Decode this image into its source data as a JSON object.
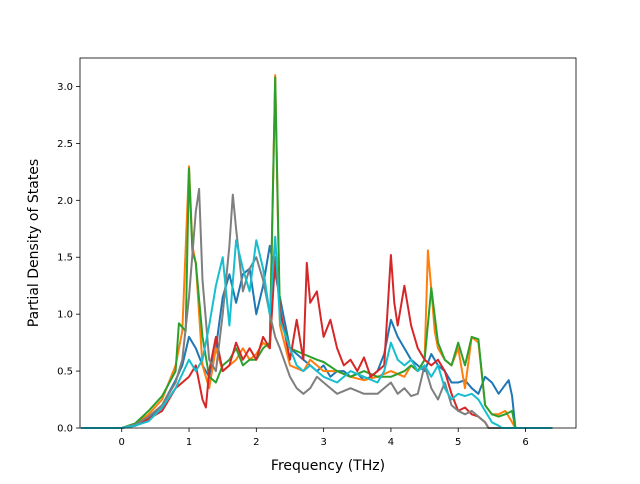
{
  "chart_data": {
    "type": "line",
    "title": "",
    "xlabel": "Frequency (THz)",
    "ylabel": "Partial Density of States",
    "xlim": [
      -0.62,
      6.75
    ],
    "ylim": [
      0.0,
      3.25
    ],
    "xticks": [
      "0",
      "1",
      "2",
      "3",
      "4",
      "5",
      "6"
    ],
    "yticks": [
      "0.0",
      "0.5",
      "1.0",
      "1.5",
      "2.0",
      "2.5",
      "3.0"
    ],
    "grid": false,
    "legend": "none",
    "series": [
      {
        "color": "#1f77b4",
        "points": [
          [
            -0.6,
            0
          ],
          [
            0,
            0
          ],
          [
            0.2,
            0.02
          ],
          [
            0.4,
            0.08
          ],
          [
            0.6,
            0.2
          ],
          [
            0.8,
            0.42
          ],
          [
            0.9,
            0.55
          ],
          [
            1.0,
            0.8
          ],
          [
            1.1,
            0.7
          ],
          [
            1.2,
            0.55
          ],
          [
            1.3,
            0.45
          ],
          [
            1.4,
            0.7
          ],
          [
            1.5,
            1.15
          ],
          [
            1.6,
            1.35
          ],
          [
            1.7,
            1.1
          ],
          [
            1.8,
            1.35
          ],
          [
            1.9,
            1.4
          ],
          [
            2.0,
            1.0
          ],
          [
            2.1,
            1.25
          ],
          [
            2.2,
            1.6
          ],
          [
            2.3,
            1.3
          ],
          [
            2.4,
            1.0
          ],
          [
            2.5,
            0.7
          ],
          [
            2.6,
            0.65
          ],
          [
            2.7,
            0.6
          ],
          [
            2.8,
            0.55
          ],
          [
            2.9,
            0.5
          ],
          [
            3.0,
            0.55
          ],
          [
            3.1,
            0.45
          ],
          [
            3.2,
            0.5
          ],
          [
            3.3,
            0.5
          ],
          [
            3.4,
            0.45
          ],
          [
            3.5,
            0.48
          ],
          [
            3.6,
            0.42
          ],
          [
            3.7,
            0.45
          ],
          [
            3.8,
            0.5
          ],
          [
            3.9,
            0.65
          ],
          [
            4.0,
            0.95
          ],
          [
            4.1,
            0.8
          ],
          [
            4.2,
            0.7
          ],
          [
            4.3,
            0.6
          ],
          [
            4.4,
            0.55
          ],
          [
            4.5,
            0.5
          ],
          [
            4.6,
            0.65
          ],
          [
            4.7,
            0.55
          ],
          [
            4.8,
            0.5
          ],
          [
            4.9,
            0.4
          ],
          [
            5.0,
            0.4
          ],
          [
            5.1,
            0.42
          ],
          [
            5.2,
            0.35
          ],
          [
            5.3,
            0.3
          ],
          [
            5.4,
            0.45
          ],
          [
            5.5,
            0.4
          ],
          [
            5.6,
            0.3
          ],
          [
            5.7,
            0.38
          ],
          [
            5.75,
            0.42
          ],
          [
            5.8,
            0.28
          ],
          [
            5.85,
            0
          ],
          [
            6.4,
            0
          ]
        ]
      },
      {
        "color": "#ff7f0e",
        "points": [
          [
            -0.6,
            0
          ],
          [
            0,
            0
          ],
          [
            0.2,
            0.03
          ],
          [
            0.4,
            0.12
          ],
          [
            0.6,
            0.25
          ],
          [
            0.8,
            0.55
          ],
          [
            0.9,
            0.85
          ],
          [
            1.0,
            2.3
          ],
          [
            1.05,
            1.6
          ],
          [
            1.1,
            1.45
          ],
          [
            1.2,
            0.55
          ],
          [
            1.3,
            0.35
          ],
          [
            1.4,
            0.7
          ],
          [
            1.5,
            0.5
          ],
          [
            1.6,
            0.55
          ],
          [
            1.7,
            0.6
          ],
          [
            1.8,
            0.7
          ],
          [
            1.9,
            0.6
          ],
          [
            2.0,
            0.65
          ],
          [
            2.1,
            0.75
          ],
          [
            2.2,
            0.7
          ],
          [
            2.28,
            3.1
          ],
          [
            2.35,
            0.9
          ],
          [
            2.5,
            0.55
          ],
          [
            2.7,
            0.5
          ],
          [
            2.8,
            0.6
          ],
          [
            2.9,
            0.55
          ],
          [
            3.0,
            0.5
          ],
          [
            3.2,
            0.5
          ],
          [
            3.4,
            0.45
          ],
          [
            3.6,
            0.42
          ],
          [
            3.8,
            0.45
          ],
          [
            4.0,
            0.5
          ],
          [
            4.2,
            0.45
          ],
          [
            4.3,
            0.55
          ],
          [
            4.4,
            0.5
          ],
          [
            4.5,
            0.6
          ],
          [
            4.55,
            1.56
          ],
          [
            4.6,
            1.22
          ],
          [
            4.65,
            0.85
          ],
          [
            4.7,
            0.7
          ],
          [
            4.8,
            0.6
          ],
          [
            4.9,
            0.55
          ],
          [
            5.0,
            0.7
          ],
          [
            5.1,
            0.35
          ],
          [
            5.2,
            0.8
          ],
          [
            5.3,
            0.75
          ],
          [
            5.4,
            0.2
          ],
          [
            5.5,
            0.12
          ],
          [
            5.6,
            0.12
          ],
          [
            5.7,
            0.15
          ],
          [
            5.8,
            0.05
          ],
          [
            5.85,
            0
          ],
          [
            6.4,
            0
          ]
        ]
      },
      {
        "color": "#2ca02c",
        "points": [
          [
            -0.6,
            0
          ],
          [
            0,
            0
          ],
          [
            0.2,
            0.04
          ],
          [
            0.4,
            0.15
          ],
          [
            0.6,
            0.28
          ],
          [
            0.8,
            0.5
          ],
          [
            0.85,
            0.92
          ],
          [
            0.95,
            0.85
          ],
          [
            1.0,
            2.28
          ],
          [
            1.05,
            1.55
          ],
          [
            1.1,
            1.45
          ],
          [
            1.2,
            0.8
          ],
          [
            1.3,
            0.45
          ],
          [
            1.4,
            0.4
          ],
          [
            1.5,
            0.55
          ],
          [
            1.6,
            0.6
          ],
          [
            1.7,
            0.7
          ],
          [
            1.8,
            0.55
          ],
          [
            1.9,
            0.6
          ],
          [
            2.0,
            0.6
          ],
          [
            2.1,
            0.7
          ],
          [
            2.2,
            0.75
          ],
          [
            2.28,
            3.08
          ],
          [
            2.35,
            1.0
          ],
          [
            2.5,
            0.7
          ],
          [
            2.7,
            0.65
          ],
          [
            2.9,
            0.6
          ],
          [
            3.0,
            0.58
          ],
          [
            3.2,
            0.5
          ],
          [
            3.4,
            0.45
          ],
          [
            3.6,
            0.5
          ],
          [
            3.8,
            0.45
          ],
          [
            4.0,
            0.45
          ],
          [
            4.2,
            0.5
          ],
          [
            4.3,
            0.55
          ],
          [
            4.4,
            0.5
          ],
          [
            4.5,
            0.6
          ],
          [
            4.6,
            1.23
          ],
          [
            4.7,
            0.75
          ],
          [
            4.8,
            0.6
          ],
          [
            4.9,
            0.55
          ],
          [
            5.0,
            0.75
          ],
          [
            5.1,
            0.55
          ],
          [
            5.2,
            0.8
          ],
          [
            5.3,
            0.78
          ],
          [
            5.4,
            0.2
          ],
          [
            5.5,
            0.12
          ],
          [
            5.6,
            0.1
          ],
          [
            5.7,
            0.12
          ],
          [
            5.8,
            0.15
          ],
          [
            5.85,
            0
          ],
          [
            6.4,
            0
          ]
        ]
      },
      {
        "color": "#d62728",
        "points": [
          [
            -0.6,
            0
          ],
          [
            0,
            0
          ],
          [
            0.2,
            0.02
          ],
          [
            0.4,
            0.08
          ],
          [
            0.6,
            0.15
          ],
          [
            0.8,
            0.35
          ],
          [
            1.0,
            0.45
          ],
          [
            1.1,
            0.55
          ],
          [
            1.2,
            0.25
          ],
          [
            1.25,
            0.18
          ],
          [
            1.3,
            0.5
          ],
          [
            1.4,
            0.8
          ],
          [
            1.5,
            0.5
          ],
          [
            1.6,
            0.55
          ],
          [
            1.7,
            0.75
          ],
          [
            1.8,
            0.6
          ],
          [
            1.9,
            0.7
          ],
          [
            2.0,
            0.6
          ],
          [
            2.1,
            0.8
          ],
          [
            2.2,
            0.7
          ],
          [
            2.28,
            1.5
          ],
          [
            2.35,
            1.05
          ],
          [
            2.5,
            0.6
          ],
          [
            2.6,
            0.95
          ],
          [
            2.7,
            0.6
          ],
          [
            2.75,
            1.45
          ],
          [
            2.8,
            1.1
          ],
          [
            2.9,
            1.2
          ],
          [
            3.0,
            0.8
          ],
          [
            3.1,
            0.95
          ],
          [
            3.2,
            0.7
          ],
          [
            3.3,
            0.55
          ],
          [
            3.4,
            0.6
          ],
          [
            3.5,
            0.5
          ],
          [
            3.6,
            0.62
          ],
          [
            3.7,
            0.45
          ],
          [
            3.8,
            0.5
          ],
          [
            3.9,
            0.55
          ],
          [
            4.0,
            1.52
          ],
          [
            4.05,
            1.1
          ],
          [
            4.1,
            0.9
          ],
          [
            4.2,
            1.25
          ],
          [
            4.3,
            0.9
          ],
          [
            4.4,
            0.7
          ],
          [
            4.5,
            0.6
          ],
          [
            4.6,
            0.55
          ],
          [
            4.7,
            0.6
          ],
          [
            4.8,
            0.5
          ],
          [
            4.9,
            0.3
          ],
          [
            5.0,
            0.15
          ],
          [
            5.1,
            0.18
          ],
          [
            5.2,
            0.12
          ],
          [
            5.3,
            0.1
          ],
          [
            5.4,
            0.05
          ],
          [
            5.45,
            0
          ],
          [
            6.4,
            0
          ]
        ]
      },
      {
        "color": "#7f7f7f",
        "points": [
          [
            -0.6,
            0
          ],
          [
            0,
            0
          ],
          [
            0.2,
            0.03
          ],
          [
            0.4,
            0.1
          ],
          [
            0.6,
            0.2
          ],
          [
            0.8,
            0.4
          ],
          [
            0.9,
            0.6
          ],
          [
            1.0,
            1.15
          ],
          [
            1.1,
            1.9
          ],
          [
            1.15,
            2.1
          ],
          [
            1.2,
            1.3
          ],
          [
            1.3,
            0.6
          ],
          [
            1.4,
            0.5
          ],
          [
            1.5,
            1.0
          ],
          [
            1.6,
            1.6
          ],
          [
            1.65,
            2.05
          ],
          [
            1.7,
            1.75
          ],
          [
            1.8,
            1.2
          ],
          [
            1.9,
            1.4
          ],
          [
            2.0,
            1.5
          ],
          [
            2.1,
            1.3
          ],
          [
            2.2,
            1.0
          ],
          [
            2.28,
            0.8
          ],
          [
            2.35,
            0.7
          ],
          [
            2.5,
            0.45
          ],
          [
            2.6,
            0.35
          ],
          [
            2.7,
            0.3
          ],
          [
            2.8,
            0.35
          ],
          [
            2.9,
            0.45
          ],
          [
            3.0,
            0.4
          ],
          [
            3.2,
            0.3
          ],
          [
            3.4,
            0.35
          ],
          [
            3.6,
            0.3
          ],
          [
            3.8,
            0.3
          ],
          [
            4.0,
            0.4
          ],
          [
            4.1,
            0.3
          ],
          [
            4.2,
            0.35
          ],
          [
            4.3,
            0.28
          ],
          [
            4.4,
            0.3
          ],
          [
            4.5,
            0.55
          ],
          [
            4.6,
            0.35
          ],
          [
            4.7,
            0.25
          ],
          [
            4.8,
            0.4
          ],
          [
            4.9,
            0.2
          ],
          [
            5.0,
            0.15
          ],
          [
            5.1,
            0.12
          ],
          [
            5.2,
            0.15
          ],
          [
            5.3,
            0.1
          ],
          [
            5.4,
            0.05
          ],
          [
            5.45,
            0
          ],
          [
            6.4,
            0
          ]
        ]
      },
      {
        "color": "#17becf",
        "points": [
          [
            -0.6,
            0
          ],
          [
            0,
            0
          ],
          [
            0.2,
            0.02
          ],
          [
            0.4,
            0.06
          ],
          [
            0.6,
            0.18
          ],
          [
            0.8,
            0.35
          ],
          [
            1.0,
            0.6
          ],
          [
            1.1,
            0.5
          ],
          [
            1.2,
            0.6
          ],
          [
            1.3,
            0.9
          ],
          [
            1.4,
            1.25
          ],
          [
            1.5,
            1.5
          ],
          [
            1.6,
            0.9
          ],
          [
            1.7,
            1.65
          ],
          [
            1.8,
            1.4
          ],
          [
            1.9,
            1.2
          ],
          [
            2.0,
            1.65
          ],
          [
            2.1,
            1.4
          ],
          [
            2.2,
            1.0
          ],
          [
            2.28,
            1.68
          ],
          [
            2.35,
            0.95
          ],
          [
            2.5,
            0.7
          ],
          [
            2.6,
            0.55
          ],
          [
            2.7,
            0.5
          ],
          [
            2.8,
            0.55
          ],
          [
            2.9,
            0.5
          ],
          [
            3.0,
            0.45
          ],
          [
            3.2,
            0.4
          ],
          [
            3.4,
            0.5
          ],
          [
            3.6,
            0.45
          ],
          [
            3.8,
            0.4
          ],
          [
            3.9,
            0.5
          ],
          [
            4.0,
            0.75
          ],
          [
            4.1,
            0.6
          ],
          [
            4.2,
            0.55
          ],
          [
            4.3,
            0.6
          ],
          [
            4.4,
            0.5
          ],
          [
            4.5,
            0.55
          ],
          [
            4.6,
            0.45
          ],
          [
            4.7,
            0.55
          ],
          [
            4.8,
            0.35
          ],
          [
            4.9,
            0.25
          ],
          [
            5.0,
            0.3
          ],
          [
            5.1,
            0.28
          ],
          [
            5.2,
            0.3
          ],
          [
            5.3,
            0.25
          ],
          [
            5.4,
            0.15
          ],
          [
            5.5,
            0.05
          ],
          [
            5.6,
            0.02
          ],
          [
            5.65,
            0
          ],
          [
            6.4,
            0
          ]
        ]
      }
    ]
  }
}
